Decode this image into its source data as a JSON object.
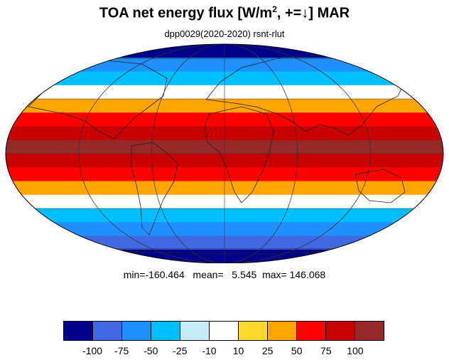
{
  "title": {
    "main": "TOA net energy flux  [W/m",
    "sup": "2",
    "rest": ", +=↓] MAR"
  },
  "subtitle": "dpp0029(2020-2020)     rsnt-rlut",
  "stats": "min=-160.464   mean=   5.545  max= 146.068",
  "colorbar": {
    "colors": [
      "#00008b",
      "#4169e1",
      "#1e90ff",
      "#00bfff",
      "#c6ecfa",
      "#ffffff",
      "#ffd82e",
      "#ffa500",
      "#ff0000",
      "#c80000",
      "#962828"
    ],
    "labels": [
      "-100",
      "-75",
      "-50",
      "-25",
      "-10",
      "10",
      "25",
      "50",
      "75",
      "100"
    ]
  },
  "map": {
    "projection": "mollweide",
    "band_colors": [
      "#00008b",
      "#1e90ff",
      "#00bfff",
      "#ffffff",
      "#ffa500",
      "#ff0000",
      "#c80000",
      "#962828",
      "#c80000",
      "#ff0000",
      "#ffa500",
      "#ffffff",
      "#00bfff",
      "#1e90ff",
      "#4169e1",
      "#00008b"
    ],
    "land_color": "none",
    "grid": true
  }
}
